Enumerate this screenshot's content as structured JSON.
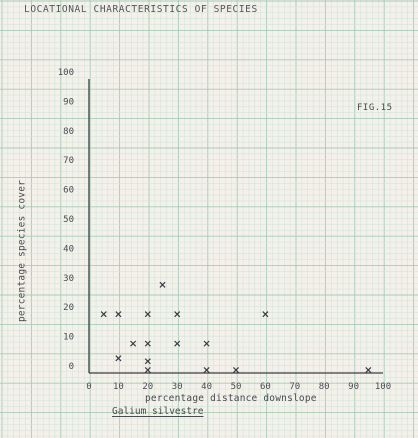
{
  "header": {
    "title": "LOCATIONAL CHARACTERISTICS OF SPECIES"
  },
  "figure": {
    "label": "FIG.15"
  },
  "species": {
    "name": "Galium silvestre"
  },
  "chart_data": {
    "type": "scatter",
    "title": "",
    "xlabel": "percentage distance downslope",
    "ylabel": "percentage species cover",
    "xlim": [
      0,
      100
    ],
    "ylim": [
      0,
      100
    ],
    "x_ticks": [
      "0",
      "10",
      "20",
      "30",
      "40",
      "50",
      "60",
      "70",
      "80",
      "90",
      "100"
    ],
    "y_ticks": [
      "100",
      "90",
      "80",
      "70",
      "60",
      "50",
      "40",
      "30",
      "20",
      "10",
      "0"
    ],
    "grid": true,
    "marker": "x",
    "points": [
      {
        "x": 5,
        "y": 20
      },
      {
        "x": 10,
        "y": 20
      },
      {
        "x": 10,
        "y": 5
      },
      {
        "x": 15,
        "y": 10
      },
      {
        "x": 20,
        "y": 20
      },
      {
        "x": 20,
        "y": 10
      },
      {
        "x": 20,
        "y": 4
      },
      {
        "x": 20,
        "y": 1
      },
      {
        "x": 25,
        "y": 30
      },
      {
        "x": 30,
        "y": 20
      },
      {
        "x": 30,
        "y": 10
      },
      {
        "x": 40,
        "y": 10
      },
      {
        "x": 40,
        "y": 1
      },
      {
        "x": 50,
        "y": 1
      },
      {
        "x": 60,
        "y": 20
      },
      {
        "x": 95,
        "y": 1
      }
    ]
  },
  "colors": {
    "paper": "#f3f1ea",
    "grid_fine": "#cfe1d6",
    "grid_major": "#a9cbb6",
    "ink": "#3b3b44"
  }
}
